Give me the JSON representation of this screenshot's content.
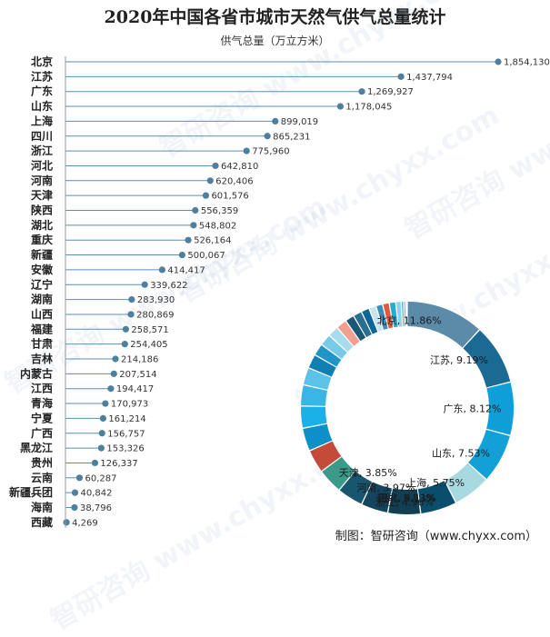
{
  "chart_data": {
    "type": "bar",
    "orientation": "horizontal",
    "title": "2020年中国各省市城市天然气供气总量统计",
    "ylabel": "供气总量（万立方米）",
    "categories": [
      "北京",
      "江苏",
      "广东",
      "山东",
      "上海",
      "四川",
      "浙江",
      "河北",
      "河南",
      "天津",
      "陕西",
      "湖北",
      "重庆",
      "新疆",
      "安徽",
      "辽宁",
      "湖南",
      "山西",
      "福建",
      "甘肃",
      "吉林",
      "内蒙古",
      "江西",
      "青海",
      "宁夏",
      "广西",
      "黑龙江",
      "贵州",
      "云南",
      "新疆兵团",
      "海南",
      "西藏"
    ],
    "values": [
      1854130,
      1437794,
      1269927,
      1178045,
      899019,
      865231,
      775960,
      642810,
      620406,
      601576,
      556359,
      548802,
      526164,
      500067,
      414417,
      339622,
      283930,
      280869,
      258571,
      254405,
      214186,
      207514,
      194417,
      170973,
      161214,
      156757,
      153326,
      126337,
      60287,
      40842,
      38796,
      4269
    ],
    "value_labels": [
      "1,854,130",
      "1,437,794",
      "1,269,927",
      "1,178,045",
      "899,019",
      "865,231",
      "775,960",
      "642,810",
      "620,406",
      "601,576",
      "556,359",
      "548,802",
      "526,164",
      "500,067",
      "414,417",
      "339,622",
      "283,930",
      "280,869",
      "258,571",
      "254,405",
      "214,186",
      "207,514",
      "194,417",
      "170,973",
      "161,214",
      "156,757",
      "153,326",
      "126,337",
      "60,287",
      "40,842",
      "38,796",
      "4,269"
    ],
    "line_color": "#5b8fb0",
    "point_color": "#4f7f9f",
    "donut": {
      "type": "pie",
      "labels": [
        "北京, 11.86%",
        "江苏, 9.19%",
        "广东, 8.12%",
        "山东, 7.53%",
        "上海, 5.75%",
        "四川, 5.53%",
        "浙江, 4.96%",
        "河北, 4.11%",
        "河南, 3.97%",
        "天津, 3.85%"
      ],
      "values": [
        11.86,
        9.19,
        8.12,
        7.53,
        5.75,
        5.53,
        4.96,
        4.11,
        3.97,
        3.85,
        3.56,
        3.51,
        3.36,
        3.2,
        2.65,
        2.17,
        1.82,
        1.8,
        1.65,
        1.63,
        1.37,
        1.33,
        1.24,
        1.09,
        1.03,
        1.0,
        0.98,
        0.81,
        0.39,
        0.26,
        0.25,
        0.03
      ],
      "colors": [
        "#5b8ba8",
        "#1a6a94",
        "#0e9fd8",
        "#12a0d6",
        "#a9d9e0",
        "#0a4e6e",
        "#123f52",
        "#14455f",
        "#17566e",
        "#3c9a8a",
        "#c44a3a",
        "#0e8fc6",
        "#1ab0e8",
        "#3ab6e6",
        "#5bc2ea",
        "#0f7fb4",
        "#2295c8",
        "#78cbe8",
        "#a8dbee",
        "#f0a090",
        "#1a5878",
        "#2a6f90",
        "#0d6796",
        "#c8e4f0",
        "#3a8fb8",
        "#e05a3a",
        "#2aa8d8",
        "#8fd0ea",
        "#4fb8e0",
        "#12506e",
        "#d0eef8",
        "#dff4fb"
      ]
    },
    "grid": false
  },
  "source": "制图：智研咨询（www.chyxx.com）",
  "watermark": "智研咨询 www.chyxx.com"
}
